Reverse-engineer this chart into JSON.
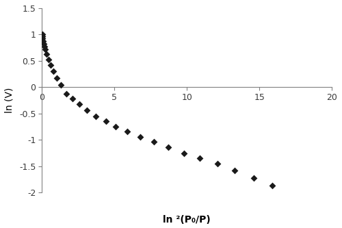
{
  "x_data": [
    0.01,
    0.02,
    0.04,
    0.07,
    0.1,
    0.15,
    0.2,
    0.3,
    0.45,
    0.6,
    0.8,
    1.0,
    1.3,
    1.7,
    2.1,
    2.6,
    3.1,
    3.7,
    4.4,
    5.1,
    5.9,
    6.8,
    7.7,
    8.7,
    9.8,
    10.9,
    12.1,
    13.3,
    14.6,
    15.9
  ],
  "y_data": [
    1.0,
    0.97,
    0.93,
    0.88,
    0.83,
    0.77,
    0.72,
    0.63,
    0.52,
    0.42,
    0.3,
    0.18,
    0.04,
    -0.12,
    -0.22,
    -0.32,
    -0.44,
    -0.55,
    -0.65,
    -0.75,
    -0.84,
    -0.94,
    -1.04,
    -1.14,
    -1.25,
    -1.35,
    -1.45,
    -1.58,
    -1.72,
    -1.87
  ],
  "marker": "D",
  "marker_color": "#1a1a1a",
  "marker_size": 25,
  "xlim": [
    0,
    20
  ],
  "ylim": [
    -2,
    1.5
  ],
  "xticks": [
    0,
    5,
    10,
    15,
    20
  ],
  "yticks": [
    -2.0,
    -1.5,
    -1.0,
    -0.5,
    0.0,
    0.5,
    1.0,
    1.5
  ],
  "xlabel": "ln ²(P₀/P)",
  "ylabel": "ln (V)",
  "spine_color": "#808080",
  "background_color": "#ffffff",
  "tick_fontsize": 9,
  "label_fontsize": 10
}
